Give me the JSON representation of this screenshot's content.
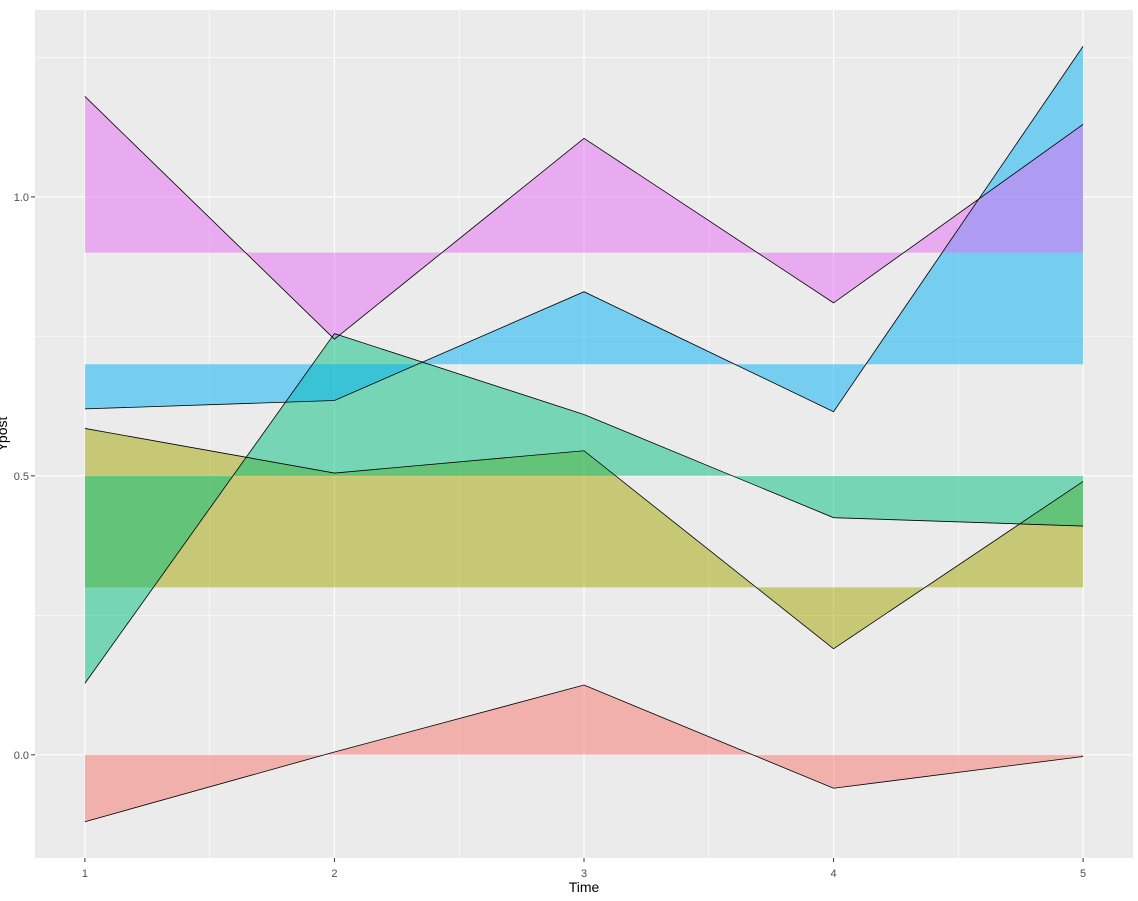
{
  "chart_data": {
    "type": "area",
    "title": "",
    "xlabel": "Time",
    "ylabel": "Ypost",
    "xlim": [
      0.8,
      5.2
    ],
    "ylim": [
      -0.185,
      1.335
    ],
    "x_ticks": [
      1,
      2,
      3,
      4,
      5
    ],
    "x_tick_labels": [
      "1",
      "2",
      "3",
      "4",
      "5"
    ],
    "y_ticks": [
      0.0,
      0.5,
      1.0
    ],
    "y_tick_labels": [
      "0.0",
      "0.5",
      "1.0"
    ],
    "grid": true,
    "legend": "none",
    "x": [
      1,
      2,
      3,
      4,
      5
    ],
    "series": [
      {
        "baseline": 0.0,
        "values": [
          -0.12,
          0.005,
          0.125,
          -0.06,
          -0.003
        ],
        "fill": "#F8766D"
      },
      {
        "baseline": 0.3,
        "values": [
          0.585,
          0.505,
          0.545,
          0.19,
          0.49
        ],
        "fill": "#A3A500"
      },
      {
        "baseline": 0.5,
        "values": [
          0.128,
          0.755,
          0.61,
          0.425,
          0.41
        ],
        "fill": "#00BF7D"
      },
      {
        "baseline": 0.7,
        "values": [
          0.62,
          0.635,
          0.83,
          0.615,
          1.27
        ],
        "fill": "#00B0F6"
      },
      {
        "baseline": 0.9,
        "values": [
          1.18,
          0.745,
          1.105,
          0.81,
          1.13
        ],
        "fill": "#E76BF3"
      }
    ],
    "fill_opacity": 0.5,
    "panel_background": "#EBEBEB",
    "grid_color": "#FFFFFF",
    "outline_color": "#000000"
  }
}
